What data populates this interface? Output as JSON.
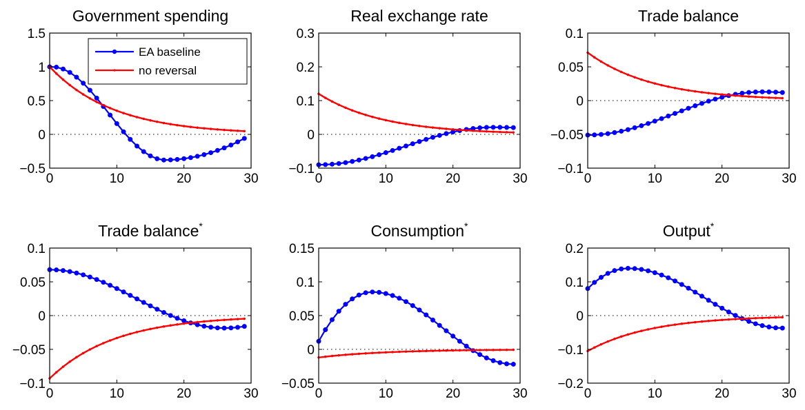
{
  "legend": {
    "entries": [
      {
        "label": "EA baseline",
        "color": "#0000ff"
      },
      {
        "label": "no reversal",
        "color": "#ff0000"
      }
    ],
    "panel": 0,
    "placement": "top-right"
  },
  "chart_data": [
    {
      "type": "line",
      "title": "Government spending",
      "superscript": "",
      "xlim": [
        0,
        30
      ],
      "ylim": [
        -0.5,
        1.5
      ],
      "xticks": [
        0,
        10,
        20,
        30
      ],
      "yticks": [
        -0.5,
        0,
        0.5,
        1,
        1.5
      ],
      "ytick_labels": [
        "-0.5",
        "0",
        "0.5",
        "1",
        "1.5"
      ],
      "zero_line": true,
      "series": [
        {
          "name": "EA baseline",
          "color": "#0000ff",
          "model": "osc",
          "params": {
            "y0": 1.0,
            "x_ext": 17,
            "y_ext": -0.38,
            "k": 0.04,
            "x_end": 29,
            "y_end": -0.06
          }
        },
        {
          "name": "no reversal",
          "color": "#ff0000",
          "model": "exp",
          "params": {
            "y0": 1.0,
            "k": 0.105
          }
        }
      ]
    },
    {
      "type": "line",
      "title": "Real exchange rate",
      "superscript": "",
      "xlim": [
        0,
        30
      ],
      "ylim": [
        -0.1,
        0.3
      ],
      "xticks": [
        0,
        10,
        20,
        30
      ],
      "yticks": [
        -0.1,
        0,
        0.1,
        0.2,
        0.3
      ],
      "ytick_labels": [
        "-0.1",
        "0",
        "0.1",
        "0.2",
        "0.3"
      ],
      "zero_line": true,
      "series": [
        {
          "name": "EA baseline",
          "color": "#0000ff",
          "model": "sig",
          "params": {
            "y0": -0.09,
            "x_ext": 26,
            "y_ext": 0.021,
            "x_end": 29,
            "y_end": 0.02
          }
        },
        {
          "name": "no reversal",
          "color": "#ff0000",
          "model": "exp",
          "params": {
            "y0": 0.12,
            "k": 0.105
          }
        }
      ]
    },
    {
      "type": "line",
      "title": "Trade balance",
      "superscript": "",
      "xlim": [
        0,
        30
      ],
      "ylim": [
        -0.1,
        0.1
      ],
      "xticks": [
        0,
        10,
        20,
        30
      ],
      "yticks": [
        -0.1,
        -0.05,
        0,
        0.05,
        0.1
      ],
      "ytick_labels": [
        "-0.1",
        "-0.05",
        "0",
        "0.05",
        "0.1"
      ],
      "zero_line": true,
      "series": [
        {
          "name": "EA baseline",
          "color": "#0000ff",
          "model": "sig",
          "params": {
            "y0": -0.051,
            "x_ext": 26,
            "y_ext": 0.013,
            "x_end": 29,
            "y_end": 0.012
          }
        },
        {
          "name": "no reversal",
          "color": "#ff0000",
          "model": "exp",
          "params": {
            "y0": 0.071,
            "k": 0.103
          }
        }
      ]
    },
    {
      "type": "line",
      "title": "Trade balance",
      "superscript": "*",
      "xlim": [
        0,
        30
      ],
      "ylim": [
        -0.1,
        0.1
      ],
      "xticks": [
        0,
        10,
        20,
        30
      ],
      "yticks": [
        -0.1,
        -0.05,
        0,
        0.05,
        0.1
      ],
      "ytick_labels": [
        "-0.1",
        "-0.05",
        "0",
        "0.05",
        "0.1"
      ],
      "zero_line": true,
      "series": [
        {
          "name": "EA baseline",
          "color": "#0000ff",
          "model": "sig",
          "params": {
            "y0": 0.068,
            "x_ext": 26,
            "y_ext": -0.0185,
            "x_end": 29,
            "y_end": -0.016
          }
        },
        {
          "name": "no reversal",
          "color": "#ff0000",
          "model": "exp",
          "params": {
            "y0": -0.093,
            "k": 0.103
          }
        }
      ]
    },
    {
      "type": "line",
      "title": "Consumption",
      "superscript": "*",
      "xlim": [
        0,
        30
      ],
      "ylim": [
        -0.05,
        0.15
      ],
      "xticks": [
        0,
        10,
        20,
        30
      ],
      "yticks": [
        -0.05,
        0,
        0.05,
        0.1,
        0.15
      ],
      "ytick_labels": [
        "-0.05",
        "0",
        "0.05",
        "0.1",
        "0.15"
      ],
      "zero_line": true,
      "series": [
        {
          "name": "EA baseline",
          "color": "#0000ff",
          "model": "hump",
          "params": {
            "y0": 0.012,
            "x_peak": 8,
            "y_peak": 0.085,
            "x_end": 29,
            "y_end": -0.022
          }
        },
        {
          "name": "no reversal",
          "color": "#ff0000",
          "model": "exp",
          "params": {
            "y0": -0.012,
            "k": 0.1
          }
        }
      ]
    },
    {
      "type": "line",
      "title": "Output",
      "superscript": "*",
      "xlim": [
        0,
        30
      ],
      "ylim": [
        -0.2,
        0.2
      ],
      "xticks": [
        0,
        10,
        20,
        30
      ],
      "yticks": [
        -0.2,
        -0.1,
        0,
        0.1,
        0.2
      ],
      "ytick_labels": [
        "-0.2",
        "-0.1",
        "0",
        "0.1",
        "0.2"
      ],
      "zero_line": true,
      "series": [
        {
          "name": "EA baseline",
          "color": "#0000ff",
          "model": "hump",
          "params": {
            "y0": 0.08,
            "x_peak": 6,
            "y_peak": 0.14,
            "x_end": 29,
            "y_end": -0.037
          }
        },
        {
          "name": "no reversal",
          "color": "#ff0000",
          "model": "exp",
          "params": {
            "y0": -0.105,
            "k": 0.105
          }
        }
      ]
    }
  ]
}
